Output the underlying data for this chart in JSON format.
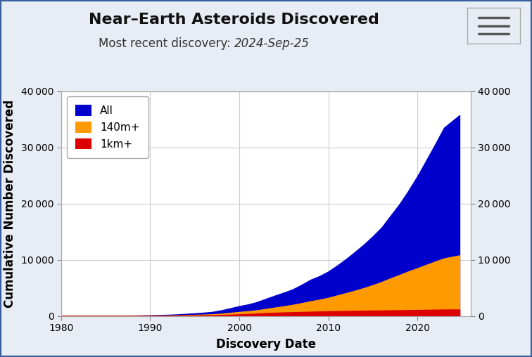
{
  "title": "Near–Earth Asteroids Discovered",
  "subtitle_prefix": "Most recent discovery: ",
  "subtitle_date": "2024-Sep-25",
  "xlabel": "Discovery Date",
  "ylabel": "Cumulative Number Discovered",
  "background_outer": "#e8ecf4",
  "background_inner": "#ffffff",
  "border_color": "#3a5fa0",
  "xlim": [
    1980,
    2026
  ],
  "ylim": [
    0,
    40000
  ],
  "yticks": [
    0,
    10000,
    20000,
    30000,
    40000
  ],
  "xticks": [
    1980,
    1990,
    2000,
    2010,
    2020
  ],
  "legend_labels": [
    "All",
    "140m+",
    "1km+"
  ],
  "legend_colors": [
    "#0000cc",
    "#ff9900",
    "#dd0000"
  ],
  "years": [
    1980,
    1981,
    1982,
    1983,
    1984,
    1985,
    1986,
    1987,
    1988,
    1989,
    1990,
    1991,
    1992,
    1993,
    1994,
    1995,
    1996,
    1997,
    1998,
    1999,
    2000,
    2001,
    2002,
    2003,
    2004,
    2005,
    2006,
    2007,
    2008,
    2009,
    2010,
    2011,
    2012,
    2013,
    2014,
    2015,
    2016,
    2017,
    2018,
    2019,
    2020,
    2021,
    2022,
    2023,
    2024.73
  ],
  "all_nea": [
    0,
    3,
    5,
    10,
    15,
    20,
    29,
    40,
    55,
    75,
    107,
    149,
    200,
    269,
    360,
    462,
    578,
    720,
    1000,
    1370,
    1742,
    2047,
    2479,
    3047,
    3614,
    4147,
    4726,
    5541,
    6433,
    7075,
    7902,
    8971,
    10123,
    11397,
    12710,
    14173,
    15763,
    17849,
    19904,
    22285,
    24850,
    27671,
    30534,
    33490,
    35707
  ],
  "nea_140m": [
    0,
    1,
    2,
    4,
    6,
    8,
    11,
    16,
    22,
    30,
    43,
    60,
    80,
    107,
    143,
    185,
    231,
    288,
    401,
    554,
    706,
    838,
    1007,
    1249,
    1487,
    1718,
    1966,
    2275,
    2609,
    2888,
    3224,
    3645,
    4066,
    4499,
    4962,
    5481,
    6043,
    6701,
    7293,
    7921,
    8487,
    9094,
    9679,
    10236,
    10765
  ],
  "nea_1km": [
    0,
    1,
    1,
    2,
    3,
    4,
    5,
    7,
    9,
    13,
    18,
    25,
    34,
    45,
    59,
    74,
    94,
    119,
    158,
    215,
    272,
    340,
    426,
    508,
    568,
    617,
    660,
    700,
    745,
    789,
    825,
    857,
    880,
    899,
    929,
    952,
    970,
    989,
    1007,
    1028,
    1052,
    1083,
    1107,
    1135,
    1143
  ],
  "title_fontsize": 16,
  "subtitle_fontsize": 12,
  "axis_label_fontsize": 12,
  "tick_fontsize": 10,
  "legend_fontsize": 11
}
